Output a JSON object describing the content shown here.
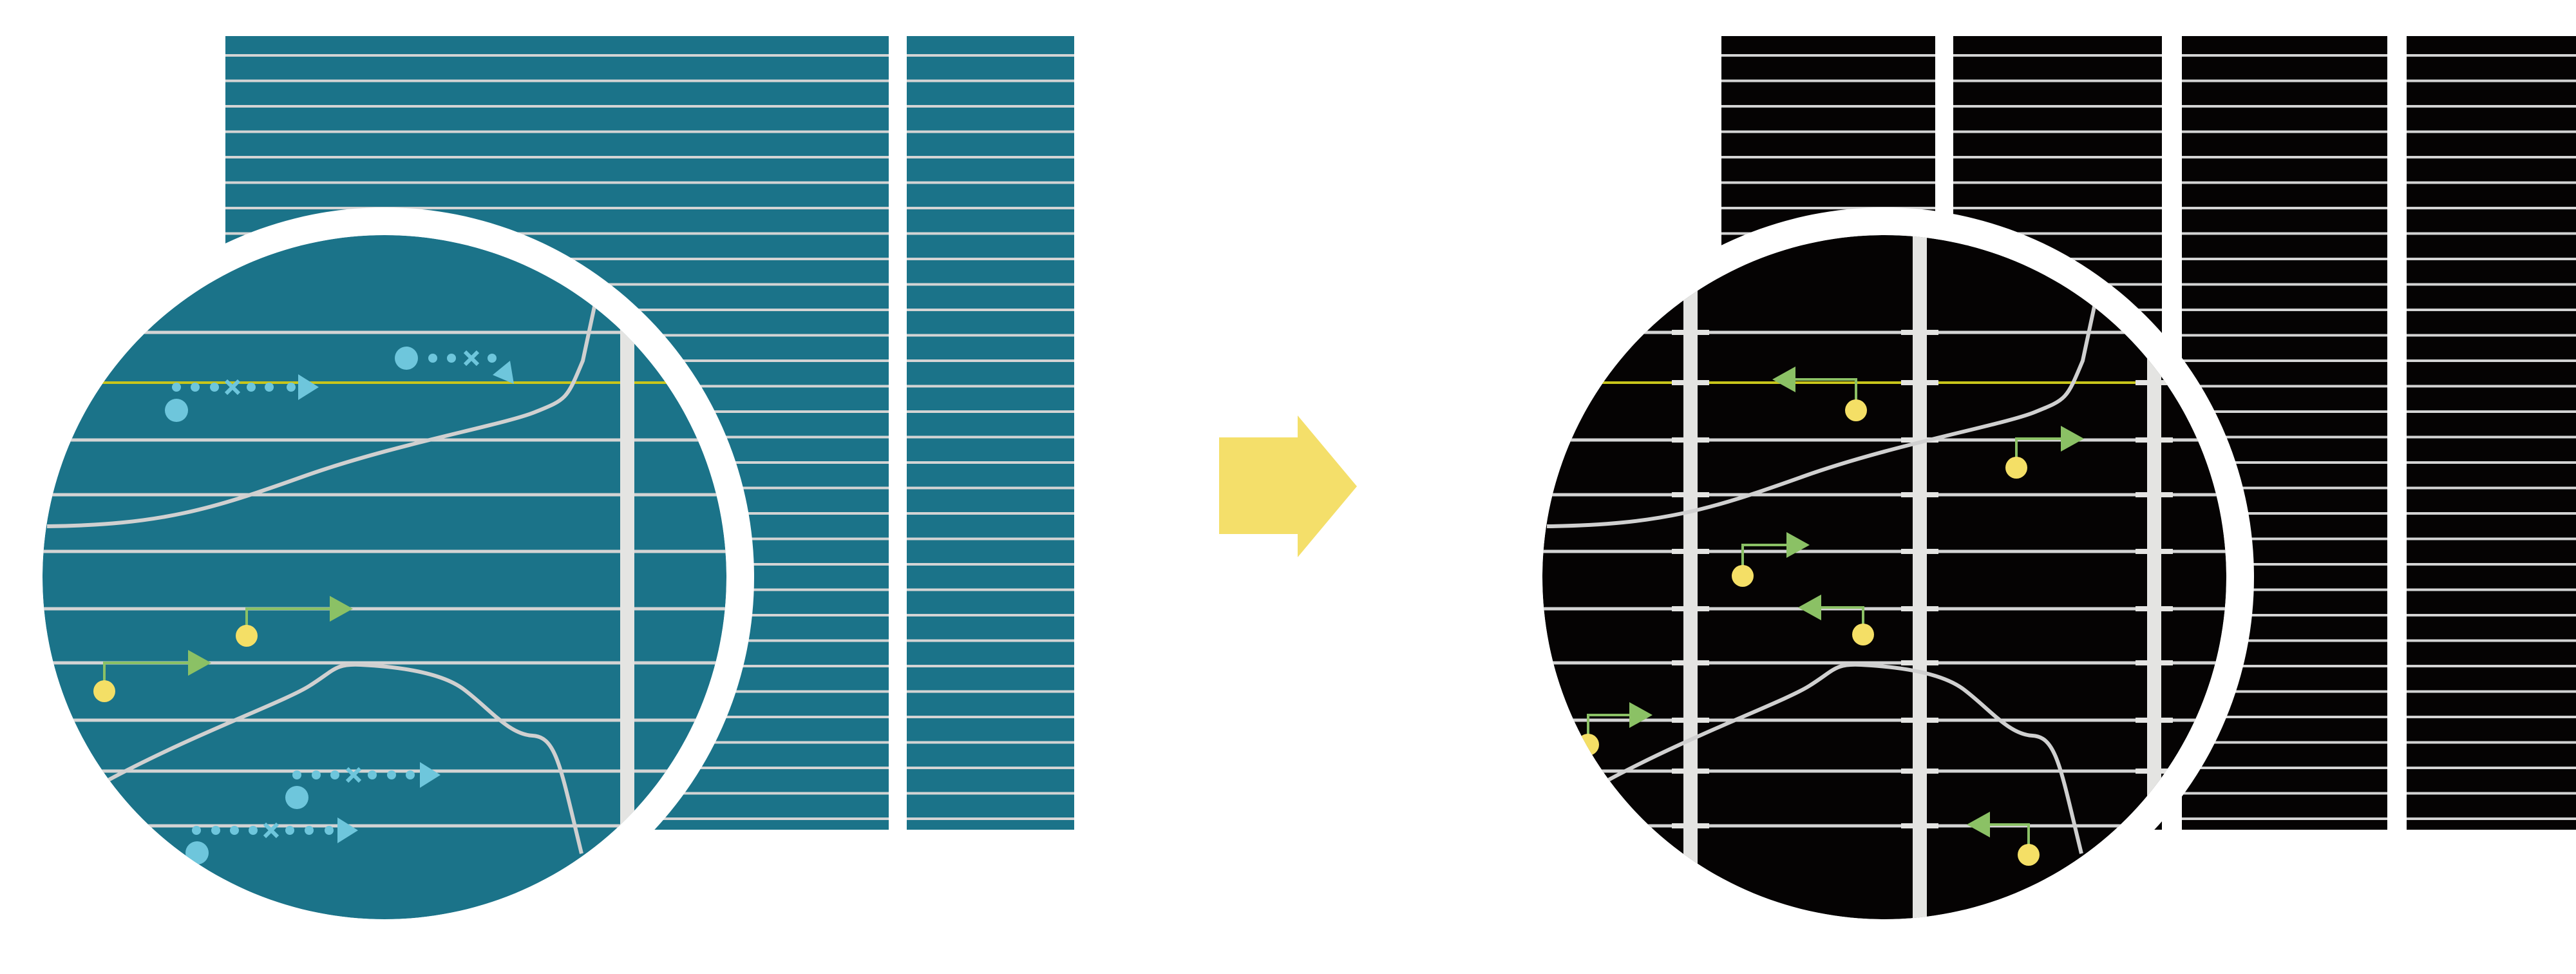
{
  "colors": {
    "before_panel": "#1b7389",
    "after_panel": "#050303",
    "grid_line": "#d4d4d4",
    "divider_bar": "#e4e4e2",
    "highlight_line": "#c8c51a",
    "curve": "#d0d0d0",
    "dotted_marker": "#6ec6dc",
    "green_arrow": "#8bc165",
    "yellow_dot": "#f4df66",
    "transition_arrow": "#f4df6a",
    "ring": "#ffffff"
  },
  "icons": {
    "transition": "right-arrow-icon",
    "before_marker": "dotted-arrow-icon",
    "after_marker": "pin-arrow-icon"
  }
}
